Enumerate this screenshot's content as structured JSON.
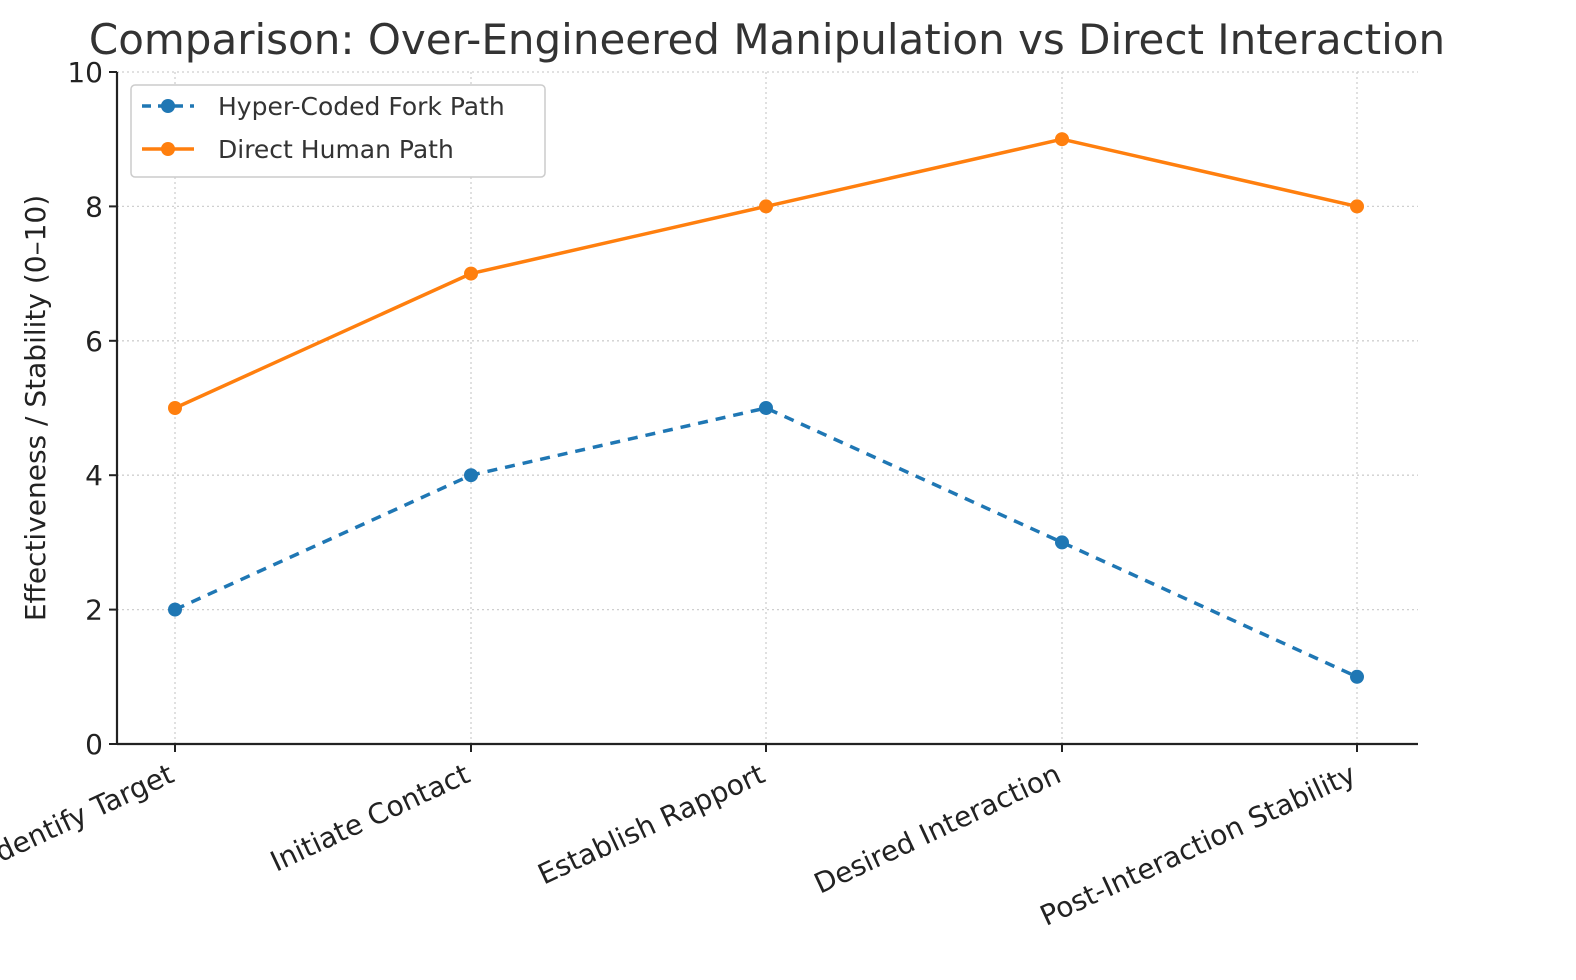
{
  "chart_data": {
    "type": "line",
    "title": "Comparison: Over-Engineered Manipulation vs Direct Interaction",
    "xlabel": "",
    "ylabel": "Effectiveness / Stability (0–10)",
    "categories": [
      "Identify Target",
      "Initiate Contact",
      "Establish Rapport",
      "Desired Interaction",
      "Post-Interaction Stability"
    ],
    "ylim": [
      0,
      10
    ],
    "yticks": [
      0,
      2,
      4,
      6,
      8,
      10
    ],
    "ytick_labels": [
      "0",
      "2",
      "4",
      "6",
      "8",
      "10"
    ],
    "grid": true,
    "legend_position": "top-left",
    "series": [
      {
        "name": "Hyper-Coded Fork Path",
        "values": [
          2,
          4,
          5,
          3,
          1
        ],
        "color": "#1f77b4",
        "line_style": "dashed",
        "marker": "circle"
      },
      {
        "name": "Direct Human Path",
        "values": [
          5,
          7,
          8,
          9,
          8
        ],
        "color": "#ff7f0e",
        "line_style": "solid",
        "marker": "circle"
      }
    ]
  }
}
